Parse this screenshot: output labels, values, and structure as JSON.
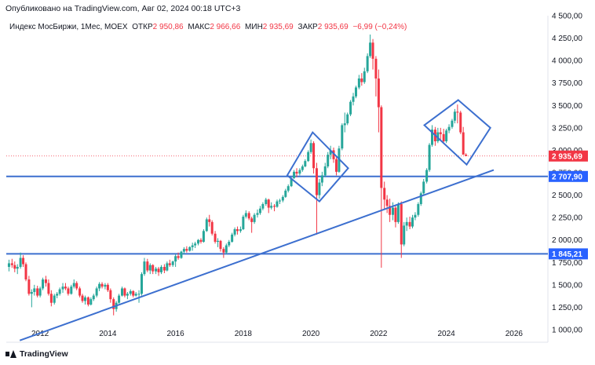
{
  "header": {
    "published": "Опубликовано на TradingView.com, Авг 02, 2024 00:18 UTC+3"
  },
  "legend": {
    "symbol": "Индекс МосБиржи, 1Мес, MOEX",
    "open_label": "ОТКР",
    "open": "2 950,86",
    "high_label": "МАКС",
    "high": "2 966,66",
    "low_label": "МИН",
    "low": "2 935,69",
    "close_label": "ЗАКР",
    "close": "2 935,69",
    "change": "−6,99 (−0,24%)"
  },
  "footer": {
    "logo_text": "TradingView"
  },
  "colors": {
    "up": "#26A69A",
    "down": "#F23645",
    "line": "#3C6FCF",
    "price_tag": "#F23645",
    "level_tag": "#2962FF"
  },
  "chart_data": {
    "type": "candlestick",
    "title": "Индекс МосБиржи, 1Мес, MOEX",
    "x_ticks": [
      "2012",
      "2014",
      "2016",
      "2018",
      "2020",
      "2022",
      "2024",
      "2026"
    ],
    "y_ticks": [
      "1 000,00",
      "1 250,00",
      "1 500,00",
      "1 750,00",
      "2 000,00",
      "2 250,00",
      "2 500,00",
      "2 750,00",
      "3 000,00",
      "3 250,00",
      "3 500,00",
      "3 750,00",
      "4 000,00",
      "4 250,00",
      "4 500,00"
    ],
    "ylim": [
      860,
      4500
    ],
    "xlim": [
      2011.0,
      2027.0
    ],
    "current_price": {
      "value": 2935.69,
      "label": "2 935,69"
    },
    "horizontal_levels": [
      {
        "value": 2707.9,
        "label": "2 707,90"
      },
      {
        "value": 1845.21,
        "label": "1 845,21"
      }
    ],
    "trendline": {
      "x1": 2011.4,
      "y1": 880,
      "x2": 2025.4,
      "y2": 2780
    },
    "diamonds": [
      {
        "points": [
          [
            2019.3,
            2720
          ],
          [
            2020.05,
            3200
          ],
          [
            2021.1,
            2800
          ],
          [
            2020.25,
            2430
          ]
        ]
      },
      {
        "points": [
          [
            2023.35,
            3280
          ],
          [
            2024.35,
            3560
          ],
          [
            2025.3,
            3250
          ],
          [
            2024.6,
            2840
          ]
        ]
      }
    ],
    "series": [
      [
        2011.08,
        1700,
        1780,
        1650,
        1740
      ],
      [
        2011.17,
        1740,
        1790,
        1690,
        1720
      ],
      [
        2011.25,
        1720,
        1760,
        1640,
        1680
      ],
      [
        2011.33,
        1680,
        1730,
        1620,
        1700
      ],
      [
        2011.42,
        1700,
        1860,
        1680,
        1800
      ],
      [
        2011.5,
        1800,
        1830,
        1700,
        1730
      ],
      [
        2011.58,
        1730,
        1750,
        1540,
        1560
      ],
      [
        2011.67,
        1560,
        1600,
        1380,
        1400
      ],
      [
        2011.75,
        1400,
        1450,
        1250,
        1420
      ],
      [
        2011.83,
        1420,
        1500,
        1380,
        1460
      ],
      [
        2011.92,
        1460,
        1490,
        1360,
        1380
      ],
      [
        2012.0,
        1380,
        1480,
        1360,
        1460
      ],
      [
        2012.08,
        1460,
        1580,
        1440,
        1560
      ],
      [
        2012.17,
        1560,
        1600,
        1480,
        1520
      ],
      [
        2012.25,
        1520,
        1560,
        1380,
        1400
      ],
      [
        2012.33,
        1400,
        1440,
        1260,
        1300
      ],
      [
        2012.42,
        1300,
        1400,
        1280,
        1380
      ],
      [
        2012.5,
        1380,
        1420,
        1350,
        1400
      ],
      [
        2012.58,
        1400,
        1470,
        1380,
        1450
      ],
      [
        2012.67,
        1450,
        1520,
        1410,
        1480
      ],
      [
        2012.75,
        1480,
        1520,
        1440,
        1460
      ],
      [
        2012.83,
        1460,
        1480,
        1380,
        1400
      ],
      [
        2012.92,
        1400,
        1500,
        1390,
        1480
      ],
      [
        2013.0,
        1480,
        1560,
        1460,
        1520
      ],
      [
        2013.08,
        1520,
        1540,
        1440,
        1460
      ],
      [
        2013.17,
        1460,
        1480,
        1360,
        1380
      ],
      [
        2013.25,
        1380,
        1400,
        1300,
        1320
      ],
      [
        2013.33,
        1320,
        1380,
        1280,
        1360
      ],
      [
        2013.42,
        1360,
        1370,
        1260,
        1280
      ],
      [
        2013.5,
        1280,
        1360,
        1270,
        1340
      ],
      [
        2013.58,
        1340,
        1400,
        1320,
        1380
      ],
      [
        2013.67,
        1380,
        1480,
        1360,
        1460
      ],
      [
        2013.75,
        1460,
        1530,
        1430,
        1510
      ],
      [
        2013.83,
        1510,
        1530,
        1460,
        1480
      ],
      [
        2013.92,
        1480,
        1520,
        1450,
        1500
      ],
      [
        2014.0,
        1500,
        1520,
        1420,
        1440
      ],
      [
        2014.08,
        1440,
        1460,
        1300,
        1340
      ],
      [
        2014.17,
        1340,
        1360,
        1160,
        1230
      ],
      [
        2014.25,
        1230,
        1320,
        1200,
        1300
      ],
      [
        2014.33,
        1300,
        1400,
        1290,
        1380
      ],
      [
        2014.42,
        1380,
        1480,
        1370,
        1460
      ],
      [
        2014.5,
        1460,
        1470,
        1360,
        1380
      ],
      [
        2014.58,
        1380,
        1420,
        1340,
        1400
      ],
      [
        2014.67,
        1400,
        1450,
        1380,
        1430
      ],
      [
        2014.75,
        1430,
        1440,
        1360,
        1380
      ],
      [
        2014.83,
        1380,
        1420,
        1370,
        1400
      ],
      [
        2014.92,
        1400,
        1440,
        1300,
        1400
      ],
      [
        2015.0,
        1400,
        1640,
        1380,
        1620
      ],
      [
        2015.08,
        1620,
        1800,
        1600,
        1760
      ],
      [
        2015.17,
        1760,
        1790,
        1640,
        1660
      ],
      [
        2015.25,
        1660,
        1740,
        1620,
        1720
      ],
      [
        2015.33,
        1720,
        1730,
        1620,
        1650
      ],
      [
        2015.42,
        1650,
        1700,
        1620,
        1680
      ],
      [
        2015.5,
        1680,
        1700,
        1600,
        1640
      ],
      [
        2015.58,
        1640,
        1720,
        1620,
        1700
      ],
      [
        2015.67,
        1700,
        1730,
        1630,
        1660
      ],
      [
        2015.75,
        1660,
        1760,
        1650,
        1740
      ],
      [
        2015.83,
        1740,
        1780,
        1700,
        1720
      ],
      [
        2015.92,
        1720,
        1770,
        1700,
        1760
      ],
      [
        2016.0,
        1760,
        1840,
        1700,
        1820
      ],
      [
        2016.08,
        1820,
        1860,
        1780,
        1800
      ],
      [
        2016.17,
        1800,
        1880,
        1790,
        1870
      ],
      [
        2016.25,
        1870,
        1920,
        1840,
        1900
      ],
      [
        2016.33,
        1900,
        1930,
        1860,
        1880
      ],
      [
        2016.42,
        1880,
        1930,
        1870,
        1920
      ],
      [
        2016.5,
        1920,
        1970,
        1880,
        1940
      ],
      [
        2016.58,
        1940,
        1980,
        1910,
        1960
      ],
      [
        2016.67,
        1960,
        2010,
        1940,
        2000
      ],
      [
        2016.75,
        2000,
        2020,
        1960,
        1980
      ],
      [
        2016.83,
        1980,
        2120,
        1970,
        2100
      ],
      [
        2016.92,
        2100,
        2250,
        2090,
        2230
      ],
      [
        2017.0,
        2230,
        2280,
        2150,
        2200
      ],
      [
        2017.08,
        2200,
        2220,
        2050,
        2070
      ],
      [
        2017.17,
        2070,
        2100,
        1960,
        1980
      ],
      [
        2017.25,
        1980,
        2020,
        1920,
        1990
      ],
      [
        2017.33,
        1990,
        2000,
        1870,
        1900
      ],
      [
        2017.42,
        1900,
        1920,
        1800,
        1860
      ],
      [
        2017.5,
        1860,
        1960,
        1840,
        1940
      ],
      [
        2017.58,
        1940,
        2000,
        1920,
        1980
      ],
      [
        2017.67,
        1980,
        2080,
        1970,
        2060
      ],
      [
        2017.75,
        2060,
        2140,
        2040,
        2120
      ],
      [
        2017.83,
        2120,
        2150,
        2060,
        2100
      ],
      [
        2017.92,
        2100,
        2150,
        2080,
        2120
      ],
      [
        2018.0,
        2120,
        2280,
        2110,
        2260
      ],
      [
        2018.08,
        2260,
        2330,
        2240,
        2300
      ],
      [
        2018.17,
        2300,
        2320,
        2220,
        2240
      ],
      [
        2018.25,
        2240,
        2260,
        2080,
        2200
      ],
      [
        2018.33,
        2200,
        2300,
        2180,
        2280
      ],
      [
        2018.42,
        2280,
        2340,
        2250,
        2300
      ],
      [
        2018.5,
        2300,
        2380,
        2280,
        2350
      ],
      [
        2018.58,
        2350,
        2420,
        2330,
        2400
      ],
      [
        2018.67,
        2400,
        2470,
        2380,
        2450
      ],
      [
        2018.75,
        2450,
        2460,
        2300,
        2360
      ],
      [
        2018.83,
        2360,
        2420,
        2340,
        2380
      ],
      [
        2018.92,
        2380,
        2400,
        2320,
        2370
      ],
      [
        2019.0,
        2370,
        2450,
        2360,
        2430
      ],
      [
        2019.08,
        2430,
        2460,
        2400,
        2440
      ],
      [
        2019.17,
        2440,
        2500,
        2420,
        2480
      ],
      [
        2019.25,
        2480,
        2570,
        2470,
        2550
      ],
      [
        2019.33,
        2550,
        2620,
        2530,
        2600
      ],
      [
        2019.42,
        2600,
        2700,
        2590,
        2690
      ],
      [
        2019.5,
        2690,
        2780,
        2680,
        2760
      ],
      [
        2019.58,
        2760,
        2800,
        2700,
        2740
      ],
      [
        2019.67,
        2740,
        2800,
        2720,
        2780
      ],
      [
        2019.75,
        2780,
        2840,
        2760,
        2820
      ],
      [
        2019.83,
        2820,
        2900,
        2810,
        2880
      ],
      [
        2019.92,
        2880,
        3000,
        2870,
        2980
      ],
      [
        2020.0,
        2980,
        3120,
        2960,
        3080
      ],
      [
        2020.08,
        3080,
        3100,
        2740,
        2800
      ],
      [
        2020.17,
        2800,
        2860,
        2060,
        2500
      ],
      [
        2020.25,
        2500,
        2680,
        2460,
        2640
      ],
      [
        2020.33,
        2640,
        2760,
        2600,
        2720
      ],
      [
        2020.42,
        2720,
        2860,
        2700,
        2820
      ],
      [
        2020.5,
        2820,
        2980,
        2800,
        2950
      ],
      [
        2020.58,
        2950,
        3050,
        2900,
        3000
      ],
      [
        2020.67,
        3000,
        3030,
        2860,
        2900
      ],
      [
        2020.75,
        2900,
        2920,
        2720,
        2760
      ],
      [
        2020.83,
        2760,
        3050,
        2750,
        3020
      ],
      [
        2020.92,
        3020,
        3300,
        3000,
        3280
      ],
      [
        2021.0,
        3280,
        3420,
        3200,
        3300
      ],
      [
        2021.08,
        3300,
        3420,
        3280,
        3400
      ],
      [
        2021.17,
        3400,
        3560,
        3380,
        3540
      ],
      [
        2021.25,
        3540,
        3640,
        3500,
        3600
      ],
      [
        2021.33,
        3600,
        3720,
        3580,
        3700
      ],
      [
        2021.42,
        3700,
        3840,
        3680,
        3800
      ],
      [
        2021.5,
        3800,
        3860,
        3720,
        3760
      ],
      [
        2021.58,
        3760,
        3920,
        3740,
        3880
      ],
      [
        2021.67,
        3880,
        4080,
        3860,
        4050
      ],
      [
        2021.75,
        4050,
        4290,
        4030,
        4200
      ],
      [
        2021.83,
        4200,
        4240,
        3900,
        4020
      ],
      [
        2021.92,
        4020,
        4050,
        3600,
        3800
      ],
      [
        2022.0,
        3800,
        3900,
        3200,
        3480
      ],
      [
        2022.08,
        3480,
        3500,
        1690,
        2580
      ],
      [
        2022.17,
        2580,
        2650,
        2340,
        2450
      ],
      [
        2022.25,
        2450,
        2500,
        2300,
        2380
      ],
      [
        2022.33,
        2380,
        2460,
        2200,
        2280
      ],
      [
        2022.42,
        2280,
        2420,
        2220,
        2360
      ],
      [
        2022.5,
        2360,
        2380,
        2140,
        2200
      ],
      [
        2022.58,
        2200,
        2420,
        2180,
        2400
      ],
      [
        2022.67,
        2400,
        2430,
        1800,
        1950
      ],
      [
        2022.75,
        1950,
        2200,
        1930,
        2160
      ],
      [
        2022.83,
        2160,
        2250,
        2100,
        2200
      ],
      [
        2022.92,
        2200,
        2260,
        2120,
        2150
      ],
      [
        2023.0,
        2150,
        2280,
        2130,
        2250
      ],
      [
        2023.08,
        2250,
        2310,
        2220,
        2280
      ],
      [
        2023.17,
        2280,
        2420,
        2260,
        2400
      ],
      [
        2023.25,
        2400,
        2540,
        2380,
        2520
      ],
      [
        2023.33,
        2520,
        2680,
        2500,
        2650
      ],
      [
        2023.42,
        2650,
        2800,
        2630,
        2780
      ],
      [
        2023.5,
        2780,
        3080,
        2760,
        3060
      ],
      [
        2023.58,
        3060,
        3280,
        3040,
        3230
      ],
      [
        2023.67,
        3230,
        3260,
        3050,
        3100
      ],
      [
        2023.75,
        3100,
        3250,
        3080,
        3200
      ],
      [
        2023.83,
        3200,
        3250,
        3120,
        3180
      ],
      [
        2023.92,
        3180,
        3240,
        3080,
        3100
      ],
      [
        2024.0,
        3100,
        3240,
        3080,
        3220
      ],
      [
        2024.08,
        3220,
        3290,
        3190,
        3260
      ],
      [
        2024.17,
        3260,
        3350,
        3240,
        3330
      ],
      [
        2024.25,
        3330,
        3460,
        3300,
        3430
      ],
      [
        2024.33,
        3430,
        3510,
        3300,
        3420
      ],
      [
        2024.42,
        3420,
        3440,
        3180,
        3200
      ],
      [
        2024.5,
        3200,
        3260,
        2950,
        2951
      ],
      [
        2024.58,
        2950.86,
        2966.66,
        2935.69,
        2935.69
      ]
    ]
  }
}
